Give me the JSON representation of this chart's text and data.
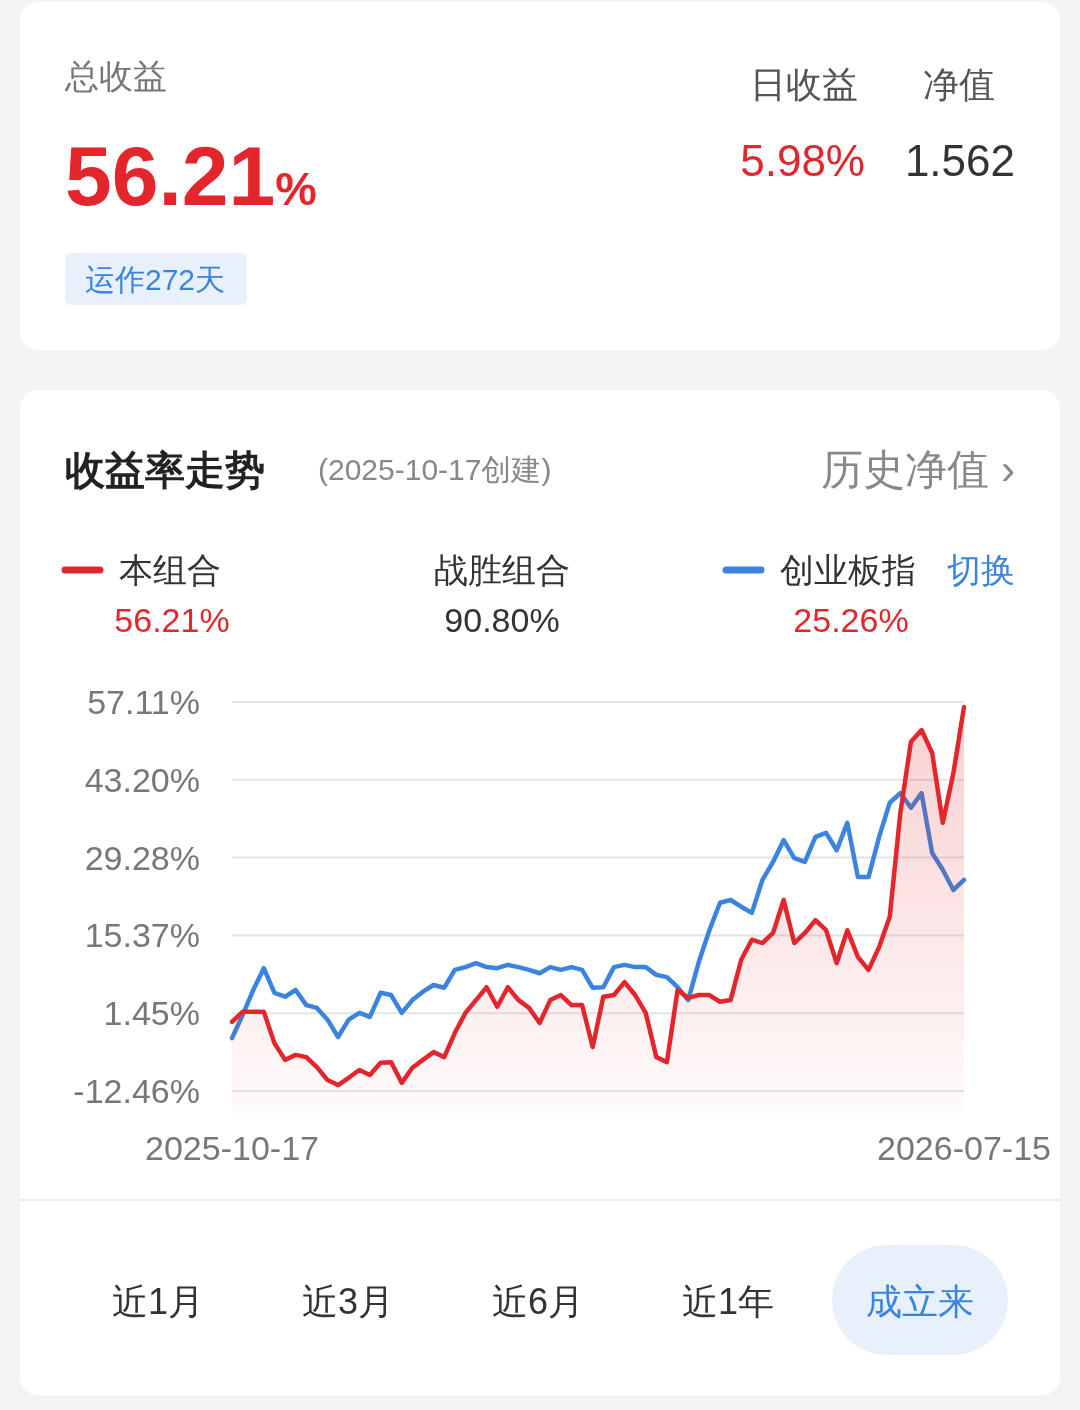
{
  "chart_data": {
    "type": "line",
    "title": "收益率走势",
    "subtitle": "(2025-10-17创建)",
    "categories": [
      "2025-10-17",
      null,
      null,
      null,
      null,
      null,
      null,
      null,
      null,
      null,
      null,
      null,
      null,
      null,
      null,
      null,
      null,
      null,
      null,
      null,
      null,
      null,
      null,
      null,
      null,
      null,
      null,
      null,
      null,
      null,
      null,
      null,
      null,
      null,
      null,
      null,
      null,
      null,
      null,
      null,
      null,
      null,
      null,
      null,
      null,
      null,
      null,
      null,
      null,
      null,
      null,
      null,
      null,
      null,
      null,
      null,
      null,
      null,
      null,
      null,
      null,
      null,
      null,
      null,
      null,
      null,
      null,
      null,
      null,
      "2026-07-15"
    ],
    "series": [
      {
        "name": "本组合",
        "type": "area",
        "color": "#e3262c",
        "values": [
          -0.1,
          1.7,
          1.7,
          1.7,
          -3.9,
          -6.9,
          -6.0,
          -6.4,
          -8.2,
          -10.5,
          -11.4,
          -10.1,
          -8.7,
          -9.6,
          -7.4,
          -7.3,
          -11.0,
          -8.3,
          -6.9,
          -5.5,
          -6.4,
          -2.1,
          1.5,
          3.8,
          6.1,
          2.6,
          6.1,
          3.8,
          2.4,
          -0.3,
          3.8,
          4.7,
          2.9,
          2.9,
          -4.6,
          4.4,
          4.7,
          7.0,
          4.7,
          1.5,
          -6.4,
          -7.3,
          5.6,
          4.2,
          4.7,
          4.7,
          3.5,
          3.8,
          11.0,
          14.6,
          14.0,
          15.8,
          21.7,
          14.0,
          15.8,
          18.1,
          16.3,
          10.4,
          16.3,
          11.5,
          9.2,
          13.3,
          18.7,
          37.3,
          50.0,
          52.1,
          48.0,
          35.5,
          44.4,
          56.2
        ]
      },
      {
        "name": "创业板指",
        "color": "#3a84df",
        "values": [
          -3.0,
          1.1,
          5.6,
          9.5,
          5.1,
          4.4,
          5.6,
          2.9,
          2.4,
          0.3,
          -2.8,
          0.3,
          1.5,
          0.8,
          5.1,
          4.7,
          1.5,
          3.8,
          5.3,
          6.5,
          6.0,
          9.2,
          9.7,
          10.4,
          9.7,
          9.5,
          10.1,
          9.7,
          9.2,
          8.6,
          9.7,
          9.2,
          9.7,
          9.2,
          6.0,
          6.1,
          9.7,
          10.1,
          9.7,
          9.7,
          8.3,
          7.9,
          6.1,
          3.8,
          10.6,
          16.3,
          21.2,
          21.7,
          20.5,
          19.4,
          25.3,
          28.5,
          32.4,
          29.2,
          28.5,
          33.0,
          33.7,
          30.6,
          35.5,
          25.8,
          25.8,
          33.0,
          39.1,
          40.8,
          38.2,
          40.8,
          30.1,
          27.1,
          23.5,
          25.3
        ]
      }
    ],
    "ylim": [
      -12.46,
      57.11
    ],
    "yticks": [
      {
        "value": 57.11,
        "label": "57.11%"
      },
      {
        "value": 43.2,
        "label": "43.20%"
      },
      {
        "value": 29.28,
        "label": "29.28%"
      },
      {
        "value": 15.37,
        "label": "15.37%"
      },
      {
        "value": 1.45,
        "label": "1.45%"
      },
      {
        "value": -12.46,
        "label": "-12.46%"
      }
    ],
    "grid": "y",
    "legend": "top",
    "annotations": [
      "总收益",
      "56.21%",
      "运作272天",
      "日收益",
      "净值",
      "5.98%",
      "1.562",
      "历史净值 ›",
      "56.21%",
      "战胜组合",
      "90.80%",
      "切换",
      "25.26%",
      "近1月",
      "近3月",
      "近6月",
      "近1年",
      "成立来"
    ]
  }
}
